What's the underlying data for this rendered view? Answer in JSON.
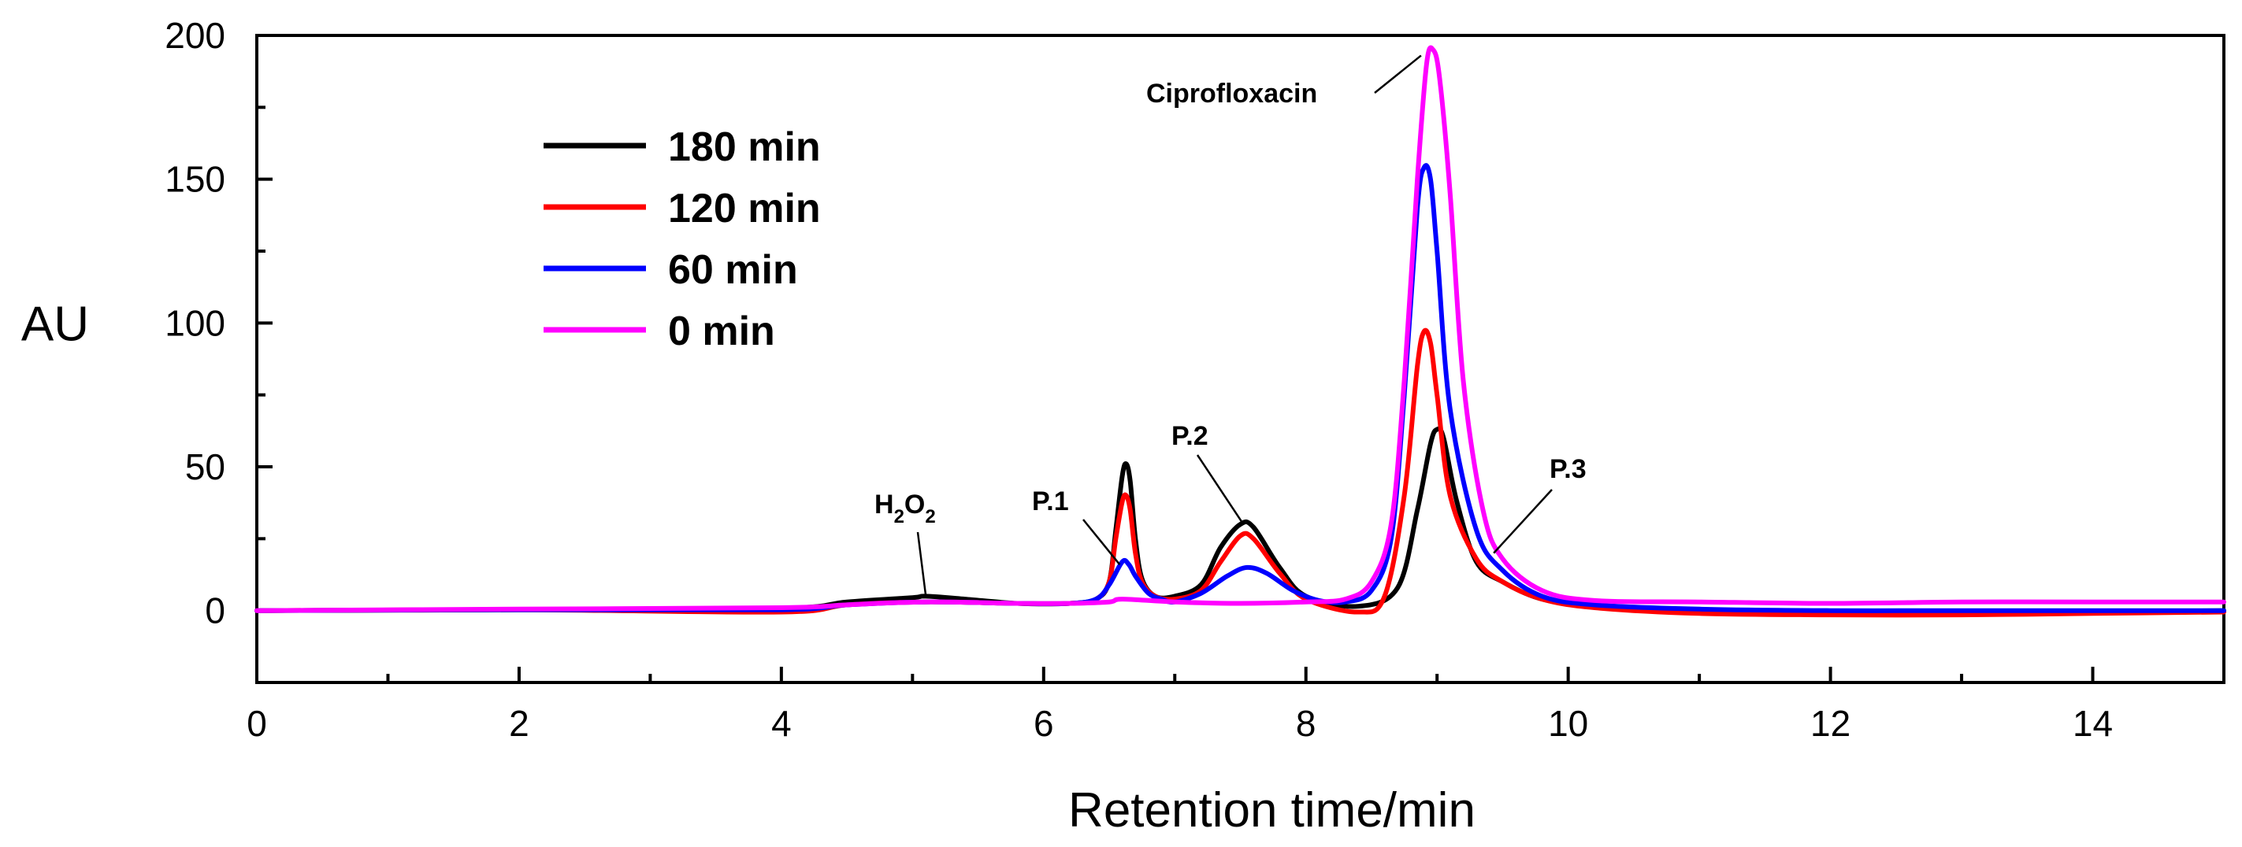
{
  "chart_data": {
    "type": "line",
    "title": "",
    "xlabel": "Retention time/min",
    "ylabel": "AU",
    "xlim": [
      0,
      15
    ],
    "ylim": [
      -25,
      200
    ],
    "xticks": [
      0,
      2,
      4,
      6,
      8,
      10,
      12,
      14
    ],
    "xtick_labels": [
      "0",
      "2",
      "4",
      "6",
      "8",
      "10",
      "12",
      "14"
    ],
    "yticks": [
      0,
      50,
      100,
      150,
      200
    ],
    "ytick_labels": [
      "0",
      "50",
      "100",
      "150",
      "200"
    ],
    "grid": false,
    "legend_position": "top-left",
    "series": [
      {
        "name": "180 min",
        "color": "#000000",
        "x": [
          0,
          2,
          4,
          4.5,
          5,
          5.1,
          5.4,
          5.8,
          6.2,
          6.4,
          6.5,
          6.55,
          6.6,
          6.63,
          6.66,
          6.7,
          6.75,
          6.85,
          7.0,
          7.2,
          7.35,
          7.5,
          7.6,
          7.8,
          8.0,
          8.4,
          8.7,
          8.85,
          8.95,
          9.0,
          9.05,
          9.15,
          9.3,
          9.5,
          9.8,
          10.2,
          11,
          12,
          13,
          14,
          15
        ],
        "y": [
          0,
          0.3,
          0.8,
          3,
          4.5,
          5,
          4,
          2.5,
          2.5,
          4,
          10,
          28,
          47,
          51,
          45,
          25,
          11,
          5,
          5,
          9,
          22,
          30,
          29,
          15,
          5,
          1.5,
          8,
          35,
          58,
          63,
          60,
          38,
          17,
          10,
          4,
          1.5,
          0,
          -1,
          -1,
          -0.5,
          0
        ]
      },
      {
        "name": "120 min",
        "color": "#ff0000",
        "x": [
          0,
          2,
          4,
          4.5,
          5.1,
          5.8,
          6.2,
          6.4,
          6.5,
          6.55,
          6.6,
          6.63,
          6.66,
          6.7,
          6.75,
          6.85,
          7.0,
          7.2,
          7.35,
          7.5,
          7.6,
          7.8,
          8.0,
          8.4,
          8.6,
          8.75,
          8.85,
          8.9,
          8.95,
          9.0,
          9.1,
          9.3,
          9.5,
          9.8,
          10.2,
          11,
          12,
          13,
          14,
          15
        ],
        "y": [
          0,
          0.3,
          -0.5,
          2,
          3,
          2.5,
          2.5,
          4,
          10,
          25,
          38,
          40,
          35,
          20,
          10,
          5,
          4,
          7,
          17,
          26,
          25,
          13,
          4,
          -0.5,
          5,
          40,
          85,
          97,
          93,
          75,
          40,
          18,
          10,
          4,
          1,
          -1,
          -1.5,
          -1.5,
          -1,
          -0.5
        ]
      },
      {
        "name": "60 min",
        "color": "#0000ff",
        "x": [
          0,
          2,
          4,
          4.5,
          5.1,
          5.8,
          6.2,
          6.4,
          6.5,
          6.6,
          6.65,
          6.7,
          6.8,
          6.9,
          7.0,
          7.2,
          7.4,
          7.55,
          7.7,
          7.9,
          8.1,
          8.3,
          8.5,
          8.65,
          8.75,
          8.85,
          8.9,
          8.95,
          9.0,
          9.1,
          9.3,
          9.5,
          9.8,
          10.2,
          11,
          12,
          13,
          14,
          15
        ],
        "y": [
          0,
          0.3,
          0.3,
          2,
          3,
          2.5,
          2.5,
          4,
          9,
          17,
          16,
          12,
          6,
          4,
          3,
          6,
          12,
          15,
          13,
          7,
          3.5,
          3,
          7,
          25,
          75,
          140,
          154,
          150,
          125,
          70,
          28,
          14,
          5,
          2,
          0.5,
          0,
          0,
          0,
          0
        ]
      },
      {
        "name": "0 min",
        "color": "#ff00ff",
        "x": [
          0,
          2,
          4,
          4.5,
          5.1,
          5.8,
          6.2,
          6.5,
          6.6,
          7.0,
          7.5,
          8.0,
          8.3,
          8.5,
          8.65,
          8.75,
          8.85,
          8.92,
          8.97,
          9.02,
          9.1,
          9.2,
          9.35,
          9.5,
          9.8,
          10.2,
          11,
          12,
          13,
          14,
          15
        ],
        "y": [
          0,
          0.5,
          1,
          2,
          3,
          2.5,
          2.5,
          3,
          4,
          3,
          2.5,
          3,
          4,
          10,
          30,
          80,
          150,
          190,
          195,
          185,
          145,
          80,
          35,
          18,
          7,
          3.5,
          3,
          2.5,
          3,
          3,
          3
        ]
      }
    ],
    "annotations": [
      {
        "text": "Ciprofloxacin",
        "x": 8.95,
        "y": 193
      },
      {
        "text": "P.1",
        "x": 6.58,
        "y": 16
      },
      {
        "text": "P.2",
        "x": 7.55,
        "y": 29
      },
      {
        "text": "P.3",
        "x": 9.3,
        "y": 20
      },
      {
        "text": "H2O2",
        "base": "H",
        "sub1": "2",
        "mid": "O",
        "sub2": "2",
        "x": 5.1,
        "y": 5
      }
    ]
  }
}
